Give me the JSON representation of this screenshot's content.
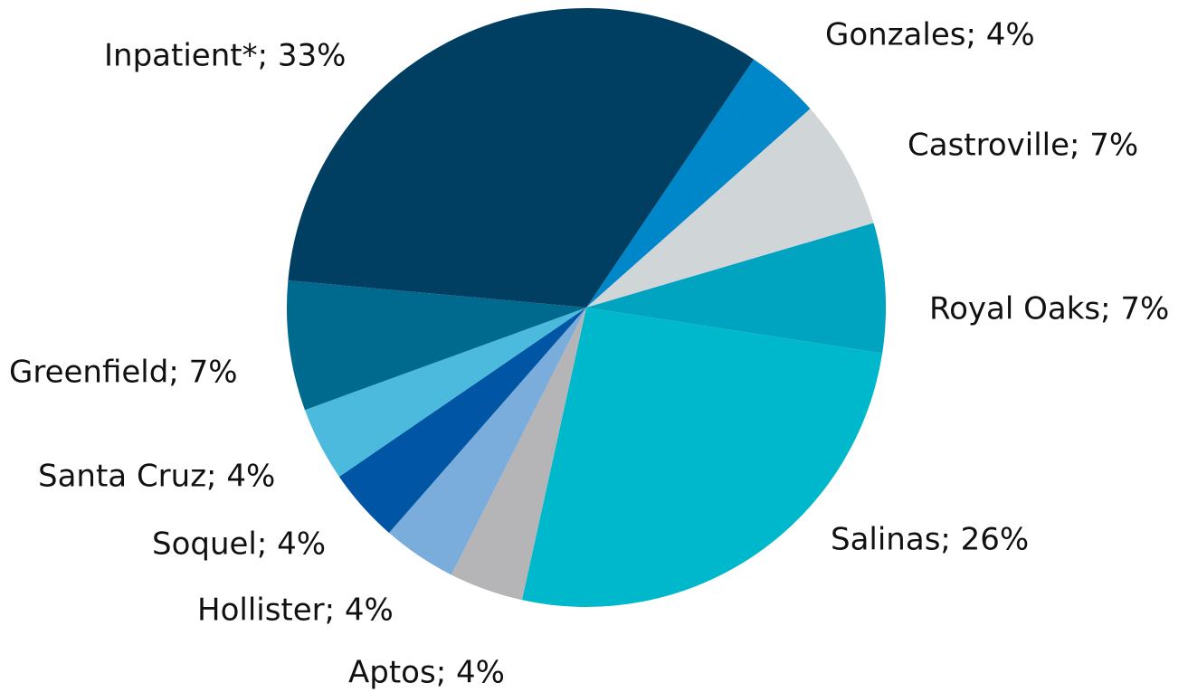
{
  "chart_data": {
    "type": "pie",
    "value_labels": [
      "Gonzales; 4%",
      "Castroville; 7%",
      "Royal Oaks; 7%",
      "Salinas; 26%",
      "Aptos; 4%",
      "Hollister; 4%",
      "Soquel; 4%",
      "Santa Cruz; 4%",
      "Greenfield; 7%",
      "Inpatient*; 33%"
    ],
    "values": [
      4,
      7,
      7,
      26,
      4,
      4,
      4,
      4,
      7,
      33
    ],
    "colors": [
      "#0087c9",
      "#d0d5d8",
      "#00a3c0",
      "#00b8cc",
      "#b5b4b6",
      "#7aacdc",
      "#0055a4",
      "#4bbadd",
      "#006a8e",
      "#003f62"
    ]
  }
}
